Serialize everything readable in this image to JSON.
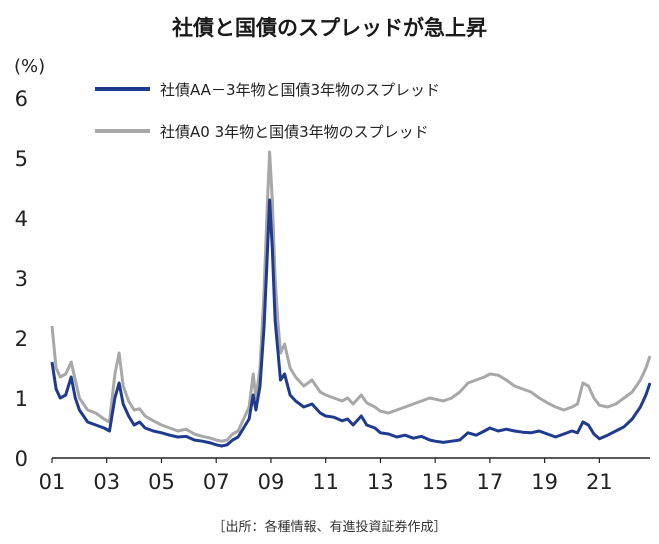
{
  "title": "社債と国債のスプレッドが急上昇",
  "source": "［出所：各種情報、有進投資証券作成］",
  "chart_data": {
    "type": "line",
    "title": "社債と国債のスプレッドが急上昇",
    "ylabel": "(%)",
    "ylim": [
      0,
      6
    ],
    "yticks": [
      "0",
      "1",
      "2",
      "3",
      "4",
      "5",
      "6"
    ],
    "xlim": [
      2001,
      2022.85
    ],
    "xticks": [
      {
        "label": "01",
        "x": 2001
      },
      {
        "label": "03",
        "x": 2003
      },
      {
        "label": "05",
        "x": 2005
      },
      {
        "label": "07",
        "x": 2007
      },
      {
        "label": "09",
        "x": 2009
      },
      {
        "label": "11",
        "x": 2011
      },
      {
        "label": "13",
        "x": 2013
      },
      {
        "label": "15",
        "x": 2015
      },
      {
        "label": "17",
        "x": 2017
      },
      {
        "label": "19",
        "x": 2019
      },
      {
        "label": "21",
        "x": 2021
      }
    ],
    "grid": false,
    "legend_position": "top-left",
    "series": [
      {
        "name": "社債AA－3年物と国債3年物のスプレッド",
        "color": "#1f3b8f",
        "points": [
          [
            2001.0,
            1.6
          ],
          [
            2001.15,
            1.15
          ],
          [
            2001.3,
            1.0
          ],
          [
            2001.5,
            1.05
          ],
          [
            2001.7,
            1.35
          ],
          [
            2001.85,
            1.0
          ],
          [
            2002.0,
            0.8
          ],
          [
            2002.3,
            0.6
          ],
          [
            2002.6,
            0.55
          ],
          [
            2002.9,
            0.5
          ],
          [
            2003.1,
            0.45
          ],
          [
            2003.3,
            1.0
          ],
          [
            2003.45,
            1.25
          ],
          [
            2003.6,
            0.9
          ],
          [
            2003.8,
            0.7
          ],
          [
            2004.0,
            0.55
          ],
          [
            2004.2,
            0.6
          ],
          [
            2004.4,
            0.5
          ],
          [
            2004.7,
            0.45
          ],
          [
            2005.0,
            0.42
          ],
          [
            2005.3,
            0.38
          ],
          [
            2005.6,
            0.35
          ],
          [
            2005.9,
            0.36
          ],
          [
            2006.2,
            0.3
          ],
          [
            2006.5,
            0.28
          ],
          [
            2006.8,
            0.25
          ],
          [
            2007.0,
            0.22
          ],
          [
            2007.2,
            0.2
          ],
          [
            2007.4,
            0.22
          ],
          [
            2007.6,
            0.3
          ],
          [
            2007.8,
            0.35
          ],
          [
            2008.0,
            0.5
          ],
          [
            2008.2,
            0.65
          ],
          [
            2008.35,
            1.05
          ],
          [
            2008.45,
            0.8
          ],
          [
            2008.6,
            1.2
          ],
          [
            2008.75,
            2.2
          ],
          [
            2008.85,
            3.2
          ],
          [
            2008.95,
            4.3
          ],
          [
            2009.05,
            3.5
          ],
          [
            2009.15,
            2.3
          ],
          [
            2009.25,
            1.8
          ],
          [
            2009.35,
            1.3
          ],
          [
            2009.5,
            1.4
          ],
          [
            2009.7,
            1.05
          ],
          [
            2009.9,
            0.95
          ],
          [
            2010.2,
            0.85
          ],
          [
            2010.5,
            0.9
          ],
          [
            2010.8,
            0.75
          ],
          [
            2011.0,
            0.7
          ],
          [
            2011.3,
            0.68
          ],
          [
            2011.6,
            0.62
          ],
          [
            2011.8,
            0.65
          ],
          [
            2012.0,
            0.55
          ],
          [
            2012.3,
            0.7
          ],
          [
            2012.5,
            0.55
          ],
          [
            2012.8,
            0.5
          ],
          [
            2013.0,
            0.42
          ],
          [
            2013.3,
            0.4
          ],
          [
            2013.6,
            0.35
          ],
          [
            2013.9,
            0.38
          ],
          [
            2014.2,
            0.33
          ],
          [
            2014.5,
            0.36
          ],
          [
            2014.8,
            0.3
          ],
          [
            2015.0,
            0.28
          ],
          [
            2015.3,
            0.26
          ],
          [
            2015.6,
            0.28
          ],
          [
            2015.9,
            0.3
          ],
          [
            2016.2,
            0.42
          ],
          [
            2016.5,
            0.38
          ],
          [
            2016.8,
            0.45
          ],
          [
            2017.0,
            0.5
          ],
          [
            2017.3,
            0.45
          ],
          [
            2017.6,
            0.48
          ],
          [
            2017.9,
            0.45
          ],
          [
            2018.2,
            0.43
          ],
          [
            2018.5,
            0.42
          ],
          [
            2018.8,
            0.45
          ],
          [
            2019.1,
            0.4
          ],
          [
            2019.4,
            0.35
          ],
          [
            2019.7,
            0.4
          ],
          [
            2020.0,
            0.45
          ],
          [
            2020.2,
            0.42
          ],
          [
            2020.4,
            0.6
          ],
          [
            2020.6,
            0.55
          ],
          [
            2020.8,
            0.4
          ],
          [
            2021.0,
            0.32
          ],
          [
            2021.3,
            0.38
          ],
          [
            2021.6,
            0.45
          ],
          [
            2021.9,
            0.52
          ],
          [
            2022.2,
            0.65
          ],
          [
            2022.5,
            0.85
          ],
          [
            2022.7,
            1.05
          ],
          [
            2022.85,
            1.25
          ]
        ]
      },
      {
        "name": "社債A0 3年物と国債3年物のスプレッド",
        "color": "#a8a8a8",
        "points": [
          [
            2001.0,
            2.2
          ],
          [
            2001.15,
            1.5
          ],
          [
            2001.3,
            1.35
          ],
          [
            2001.5,
            1.4
          ],
          [
            2001.7,
            1.6
          ],
          [
            2001.85,
            1.3
          ],
          [
            2002.0,
            1.0
          ],
          [
            2002.3,
            0.8
          ],
          [
            2002.6,
            0.75
          ],
          [
            2002.9,
            0.65
          ],
          [
            2003.1,
            0.6
          ],
          [
            2003.3,
            1.4
          ],
          [
            2003.45,
            1.75
          ],
          [
            2003.6,
            1.2
          ],
          [
            2003.8,
            0.95
          ],
          [
            2004.0,
            0.8
          ],
          [
            2004.2,
            0.82
          ],
          [
            2004.4,
            0.7
          ],
          [
            2004.7,
            0.62
          ],
          [
            2005.0,
            0.55
          ],
          [
            2005.3,
            0.5
          ],
          [
            2005.6,
            0.45
          ],
          [
            2005.9,
            0.48
          ],
          [
            2006.2,
            0.4
          ],
          [
            2006.5,
            0.36
          ],
          [
            2006.8,
            0.33
          ],
          [
            2007.0,
            0.3
          ],
          [
            2007.2,
            0.28
          ],
          [
            2007.4,
            0.3
          ],
          [
            2007.6,
            0.4
          ],
          [
            2007.8,
            0.45
          ],
          [
            2008.0,
            0.65
          ],
          [
            2008.2,
            0.85
          ],
          [
            2008.35,
            1.4
          ],
          [
            2008.45,
            1.0
          ],
          [
            2008.6,
            1.5
          ],
          [
            2008.75,
            2.8
          ],
          [
            2008.85,
            4.0
          ],
          [
            2008.95,
            5.1
          ],
          [
            2009.05,
            4.3
          ],
          [
            2009.15,
            3.0
          ],
          [
            2009.25,
            2.3
          ],
          [
            2009.35,
            1.75
          ],
          [
            2009.5,
            1.9
          ],
          [
            2009.7,
            1.5
          ],
          [
            2009.9,
            1.35
          ],
          [
            2010.2,
            1.2
          ],
          [
            2010.5,
            1.3
          ],
          [
            2010.8,
            1.1
          ],
          [
            2011.0,
            1.05
          ],
          [
            2011.3,
            1.0
          ],
          [
            2011.6,
            0.95
          ],
          [
            2011.8,
            1.0
          ],
          [
            2012.0,
            0.9
          ],
          [
            2012.3,
            1.05
          ],
          [
            2012.5,
            0.92
          ],
          [
            2012.8,
            0.85
          ],
          [
            2013.0,
            0.78
          ],
          [
            2013.3,
            0.75
          ],
          [
            2013.6,
            0.8
          ],
          [
            2013.9,
            0.85
          ],
          [
            2014.2,
            0.9
          ],
          [
            2014.5,
            0.95
          ],
          [
            2014.8,
            1.0
          ],
          [
            2015.0,
            0.98
          ],
          [
            2015.3,
            0.95
          ],
          [
            2015.6,
            1.0
          ],
          [
            2015.9,
            1.1
          ],
          [
            2016.2,
            1.25
          ],
          [
            2016.5,
            1.3
          ],
          [
            2016.8,
            1.35
          ],
          [
            2017.0,
            1.4
          ],
          [
            2017.3,
            1.38
          ],
          [
            2017.6,
            1.3
          ],
          [
            2017.9,
            1.2
          ],
          [
            2018.2,
            1.15
          ],
          [
            2018.5,
            1.1
          ],
          [
            2018.8,
            1.0
          ],
          [
            2019.1,
            0.92
          ],
          [
            2019.4,
            0.85
          ],
          [
            2019.7,
            0.8
          ],
          [
            2020.0,
            0.85
          ],
          [
            2020.2,
            0.9
          ],
          [
            2020.4,
            1.25
          ],
          [
            2020.6,
            1.2
          ],
          [
            2020.8,
            1.0
          ],
          [
            2021.0,
            0.88
          ],
          [
            2021.3,
            0.85
          ],
          [
            2021.6,
            0.9
          ],
          [
            2021.9,
            1.0
          ],
          [
            2022.2,
            1.1
          ],
          [
            2022.5,
            1.3
          ],
          [
            2022.7,
            1.5
          ],
          [
            2022.85,
            1.7
          ]
        ]
      }
    ]
  }
}
